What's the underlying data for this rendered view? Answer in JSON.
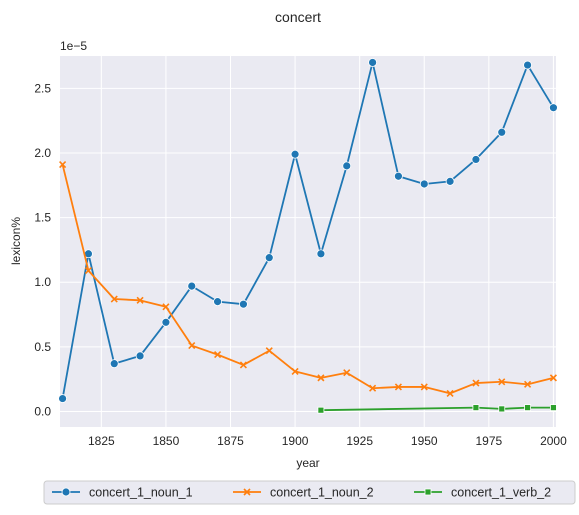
{
  "chart_data": {
    "type": "line",
    "title": "concert",
    "xlabel": "year",
    "ylabel": "lexicon%",
    "y_offset_label": "1e−5",
    "xlim": [
      1809,
      2001
    ],
    "ylim": [
      -0.12,
      2.75
    ],
    "x_ticks": [
      1825,
      1850,
      1875,
      1900,
      1925,
      1950,
      1975,
      2000
    ],
    "y_ticks": [
      0.0,
      0.5,
      1.0,
      1.5,
      2.0,
      2.5
    ],
    "y_tick_labels": [
      "0.0",
      "0.5",
      "1.0",
      "1.5",
      "2.0",
      "2.5"
    ],
    "grid": true,
    "legend_position": "bottom-center",
    "background": "#eaeaf2",
    "series": [
      {
        "name": "concert_1_noun_1",
        "color": "#1f77b4",
        "marker": "circle",
        "x": [
          1810,
          1820,
          1830,
          1840,
          1850,
          1860,
          1870,
          1880,
          1890,
          1900,
          1910,
          1920,
          1930,
          1940,
          1950,
          1960,
          1970,
          1980,
          1990,
          2000
        ],
        "y": [
          0.1,
          1.22,
          0.37,
          0.43,
          0.69,
          0.97,
          0.85,
          0.83,
          1.19,
          1.99,
          1.22,
          1.9,
          2.7,
          1.82,
          1.76,
          1.78,
          1.95,
          2.16,
          2.68,
          2.35
        ]
      },
      {
        "name": "concert_1_noun_2",
        "color": "#ff7f0e",
        "marker": "x",
        "x": [
          1810,
          1820,
          1830,
          1840,
          1850,
          1860,
          1870,
          1880,
          1890,
          1900,
          1910,
          1920,
          1930,
          1940,
          1950,
          1960,
          1970,
          1980,
          1990,
          2000
        ],
        "y": [
          1.91,
          1.09,
          0.87,
          0.86,
          0.81,
          0.51,
          0.44,
          0.36,
          0.47,
          0.31,
          0.26,
          0.3,
          0.18,
          0.19,
          0.19,
          0.14,
          0.22,
          0.23,
          0.21,
          0.26
        ]
      },
      {
        "name": "concert_1_verb_2",
        "color": "#2ca02c",
        "marker": "square",
        "x": [
          1910,
          1970,
          1980,
          1990,
          2000
        ],
        "y": [
          0.01,
          0.03,
          0.02,
          0.03,
          0.03
        ]
      }
    ]
  }
}
